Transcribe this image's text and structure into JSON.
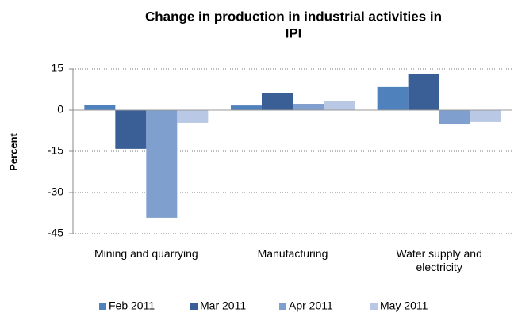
{
  "chart_data": {
    "type": "bar",
    "title": [
      "Change in production in industrial activities in",
      "IPI"
    ],
    "y_label": "Percent",
    "categories": [
      "Mining and quarrying",
      "Manufacturing",
      "Water supply and electricity"
    ],
    "series": [
      {
        "name": "Feb 2011",
        "color": "#4f81bd",
        "values": [
          1.8,
          1.7,
          8.4
        ]
      },
      {
        "name": "Mar 2011",
        "color": "#3a5f97",
        "values": [
          -14.1,
          6.1,
          13.0
        ]
      },
      {
        "name": "Apr 2011",
        "color": "#7f9fcf",
        "values": [
          -39.2,
          2.3,
          -5.2
        ]
      },
      {
        "name": "May 2011",
        "color": "#b9c8e4",
        "values": [
          -4.6,
          3.2,
          -4.3
        ]
      }
    ],
    "ylim": [
      -45,
      15
    ],
    "yticks": [
      -45,
      -30,
      -15,
      0,
      15
    ],
    "grid": true,
    "legend": "bottom"
  }
}
